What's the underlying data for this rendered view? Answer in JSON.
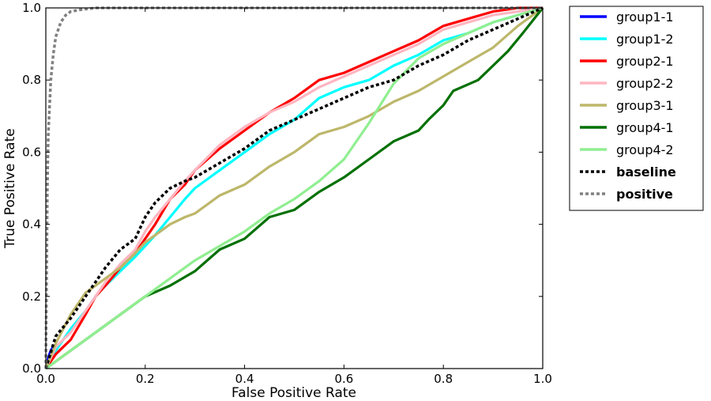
{
  "chart_data": {
    "type": "line",
    "title": "",
    "xlabel": "False Positive Rate",
    "ylabel": "True Positive Rate",
    "xlim": [
      0.0,
      1.0
    ],
    "ylim": [
      0.0,
      1.0
    ],
    "xticks": [
      "0.0",
      "0.2",
      "0.4",
      "0.6",
      "0.8",
      "1.0"
    ],
    "yticks": [
      "0.0",
      "0.2",
      "0.4",
      "0.6",
      "0.8",
      "1.0"
    ],
    "grid": false,
    "legend_position": "outside-right",
    "series": [
      {
        "name": "group1-1",
        "color": "#0000ff",
        "style": "solid",
        "x": [
          0,
          0.005,
          0.01,
          0.015
        ],
        "y": [
          0,
          0.03,
          0.05,
          0.06
        ]
      },
      {
        "name": "group1-2",
        "color": "#00ffff",
        "style": "solid",
        "x": [
          0,
          0.02,
          0.05,
          0.08,
          0.1,
          0.12,
          0.15,
          0.18,
          0.2,
          0.22,
          0.25,
          0.28,
          0.3,
          0.35,
          0.4,
          0.45,
          0.5,
          0.55,
          0.6,
          0.65,
          0.7,
          0.75,
          0.8,
          0.85,
          0.9,
          0.95,
          1.0
        ],
        "y": [
          0,
          0.05,
          0.11,
          0.16,
          0.2,
          0.23,
          0.27,
          0.31,
          0.34,
          0.37,
          0.42,
          0.47,
          0.5,
          0.55,
          0.6,
          0.65,
          0.69,
          0.75,
          0.78,
          0.8,
          0.84,
          0.87,
          0.91,
          0.93,
          0.96,
          0.98,
          1.0
        ]
      },
      {
        "name": "group2-1",
        "color": "#ff0000",
        "style": "solid",
        "x": [
          0,
          0.02,
          0.05,
          0.08,
          0.1,
          0.12,
          0.15,
          0.18,
          0.2,
          0.22,
          0.25,
          0.28,
          0.3,
          0.35,
          0.4,
          0.45,
          0.5,
          0.55,
          0.6,
          0.65,
          0.7,
          0.75,
          0.8,
          0.85,
          0.9,
          0.95,
          1.0
        ],
        "y": [
          0,
          0.04,
          0.08,
          0.15,
          0.2,
          0.23,
          0.28,
          0.32,
          0.36,
          0.4,
          0.47,
          0.51,
          0.55,
          0.61,
          0.66,
          0.71,
          0.75,
          0.8,
          0.82,
          0.85,
          0.88,
          0.91,
          0.95,
          0.97,
          0.99,
          1.0,
          1.0
        ]
      },
      {
        "name": "group2-2",
        "color": "#ffb6c1",
        "style": "solid",
        "x": [
          0,
          0.02,
          0.05,
          0.08,
          0.1,
          0.12,
          0.15,
          0.18,
          0.2,
          0.22,
          0.25,
          0.28,
          0.3,
          0.35,
          0.4,
          0.45,
          0.5,
          0.55,
          0.6,
          0.65,
          0.7,
          0.75,
          0.8,
          0.85,
          0.9,
          0.95,
          1.0
        ],
        "y": [
          0,
          0.06,
          0.1,
          0.16,
          0.2,
          0.24,
          0.29,
          0.33,
          0.38,
          0.42,
          0.47,
          0.52,
          0.55,
          0.62,
          0.67,
          0.71,
          0.74,
          0.78,
          0.81,
          0.84,
          0.87,
          0.9,
          0.94,
          0.96,
          0.98,
          0.99,
          1.0
        ]
      },
      {
        "name": "group3-1",
        "color": "#bdb76b",
        "style": "solid",
        "x": [
          0,
          0.02,
          0.05,
          0.08,
          0.1,
          0.12,
          0.15,
          0.18,
          0.2,
          0.22,
          0.25,
          0.28,
          0.3,
          0.35,
          0.4,
          0.45,
          0.5,
          0.55,
          0.6,
          0.65,
          0.7,
          0.75,
          0.8,
          0.85,
          0.9,
          0.95,
          1.0
        ],
        "y": [
          0,
          0.07,
          0.15,
          0.21,
          0.23,
          0.25,
          0.28,
          0.32,
          0.35,
          0.37,
          0.4,
          0.42,
          0.43,
          0.48,
          0.51,
          0.56,
          0.6,
          0.65,
          0.67,
          0.7,
          0.74,
          0.77,
          0.81,
          0.85,
          0.89,
          0.95,
          1.0
        ]
      },
      {
        "name": "group4-1",
        "color": "#007000",
        "style": "solid",
        "x": [
          0,
          0.1,
          0.2,
          0.25,
          0.3,
          0.35,
          0.4,
          0.45,
          0.5,
          0.55,
          0.6,
          0.65,
          0.7,
          0.75,
          0.77,
          0.8,
          0.82,
          0.87,
          0.9,
          0.93,
          0.96,
          1.0
        ],
        "y": [
          0,
          0.1,
          0.2,
          0.23,
          0.27,
          0.33,
          0.36,
          0.42,
          0.44,
          0.49,
          0.53,
          0.58,
          0.63,
          0.66,
          0.69,
          0.73,
          0.77,
          0.8,
          0.84,
          0.88,
          0.93,
          1.0
        ]
      },
      {
        "name": "group4-2",
        "color": "#90ee90",
        "style": "solid",
        "x": [
          0,
          0.1,
          0.2,
          0.3,
          0.4,
          0.45,
          0.5,
          0.55,
          0.6,
          0.65,
          0.7,
          0.75,
          0.8,
          0.85,
          0.9,
          0.95,
          1.0
        ],
        "y": [
          0,
          0.1,
          0.2,
          0.3,
          0.38,
          0.43,
          0.47,
          0.52,
          0.58,
          0.68,
          0.79,
          0.86,
          0.9,
          0.93,
          0.96,
          0.98,
          1.0
        ]
      },
      {
        "name": "baseline",
        "color": "#000000",
        "style": "dotted",
        "x": [
          0,
          0.02,
          0.05,
          0.08,
          0.1,
          0.12,
          0.15,
          0.18,
          0.2,
          0.22,
          0.25,
          0.28,
          0.3,
          0.35,
          0.4,
          0.45,
          0.5,
          0.55,
          0.6,
          0.65,
          0.7,
          0.75,
          0.8,
          0.85,
          0.9,
          0.95,
          1.0
        ],
        "y": [
          0,
          0.09,
          0.14,
          0.2,
          0.24,
          0.28,
          0.33,
          0.36,
          0.42,
          0.46,
          0.5,
          0.52,
          0.53,
          0.57,
          0.61,
          0.66,
          0.69,
          0.72,
          0.75,
          0.78,
          0.8,
          0.84,
          0.87,
          0.91,
          0.94,
          0.97,
          1.0
        ]
      },
      {
        "name": "positive",
        "color": "#808080",
        "style": "dotted",
        "x": [
          0,
          0.003,
          0.005,
          0.01,
          0.015,
          0.02,
          0.03,
          0.04,
          0.05,
          0.07,
          0.1,
          0.15,
          0.2,
          0.3,
          0.5,
          0.7,
          1.0
        ],
        "y": [
          0,
          0.5,
          0.65,
          0.8,
          0.87,
          0.92,
          0.96,
          0.98,
          0.99,
          0.995,
          1.0,
          1.0,
          1.0,
          1.0,
          1.0,
          1.0,
          1.0
        ]
      }
    ]
  }
}
